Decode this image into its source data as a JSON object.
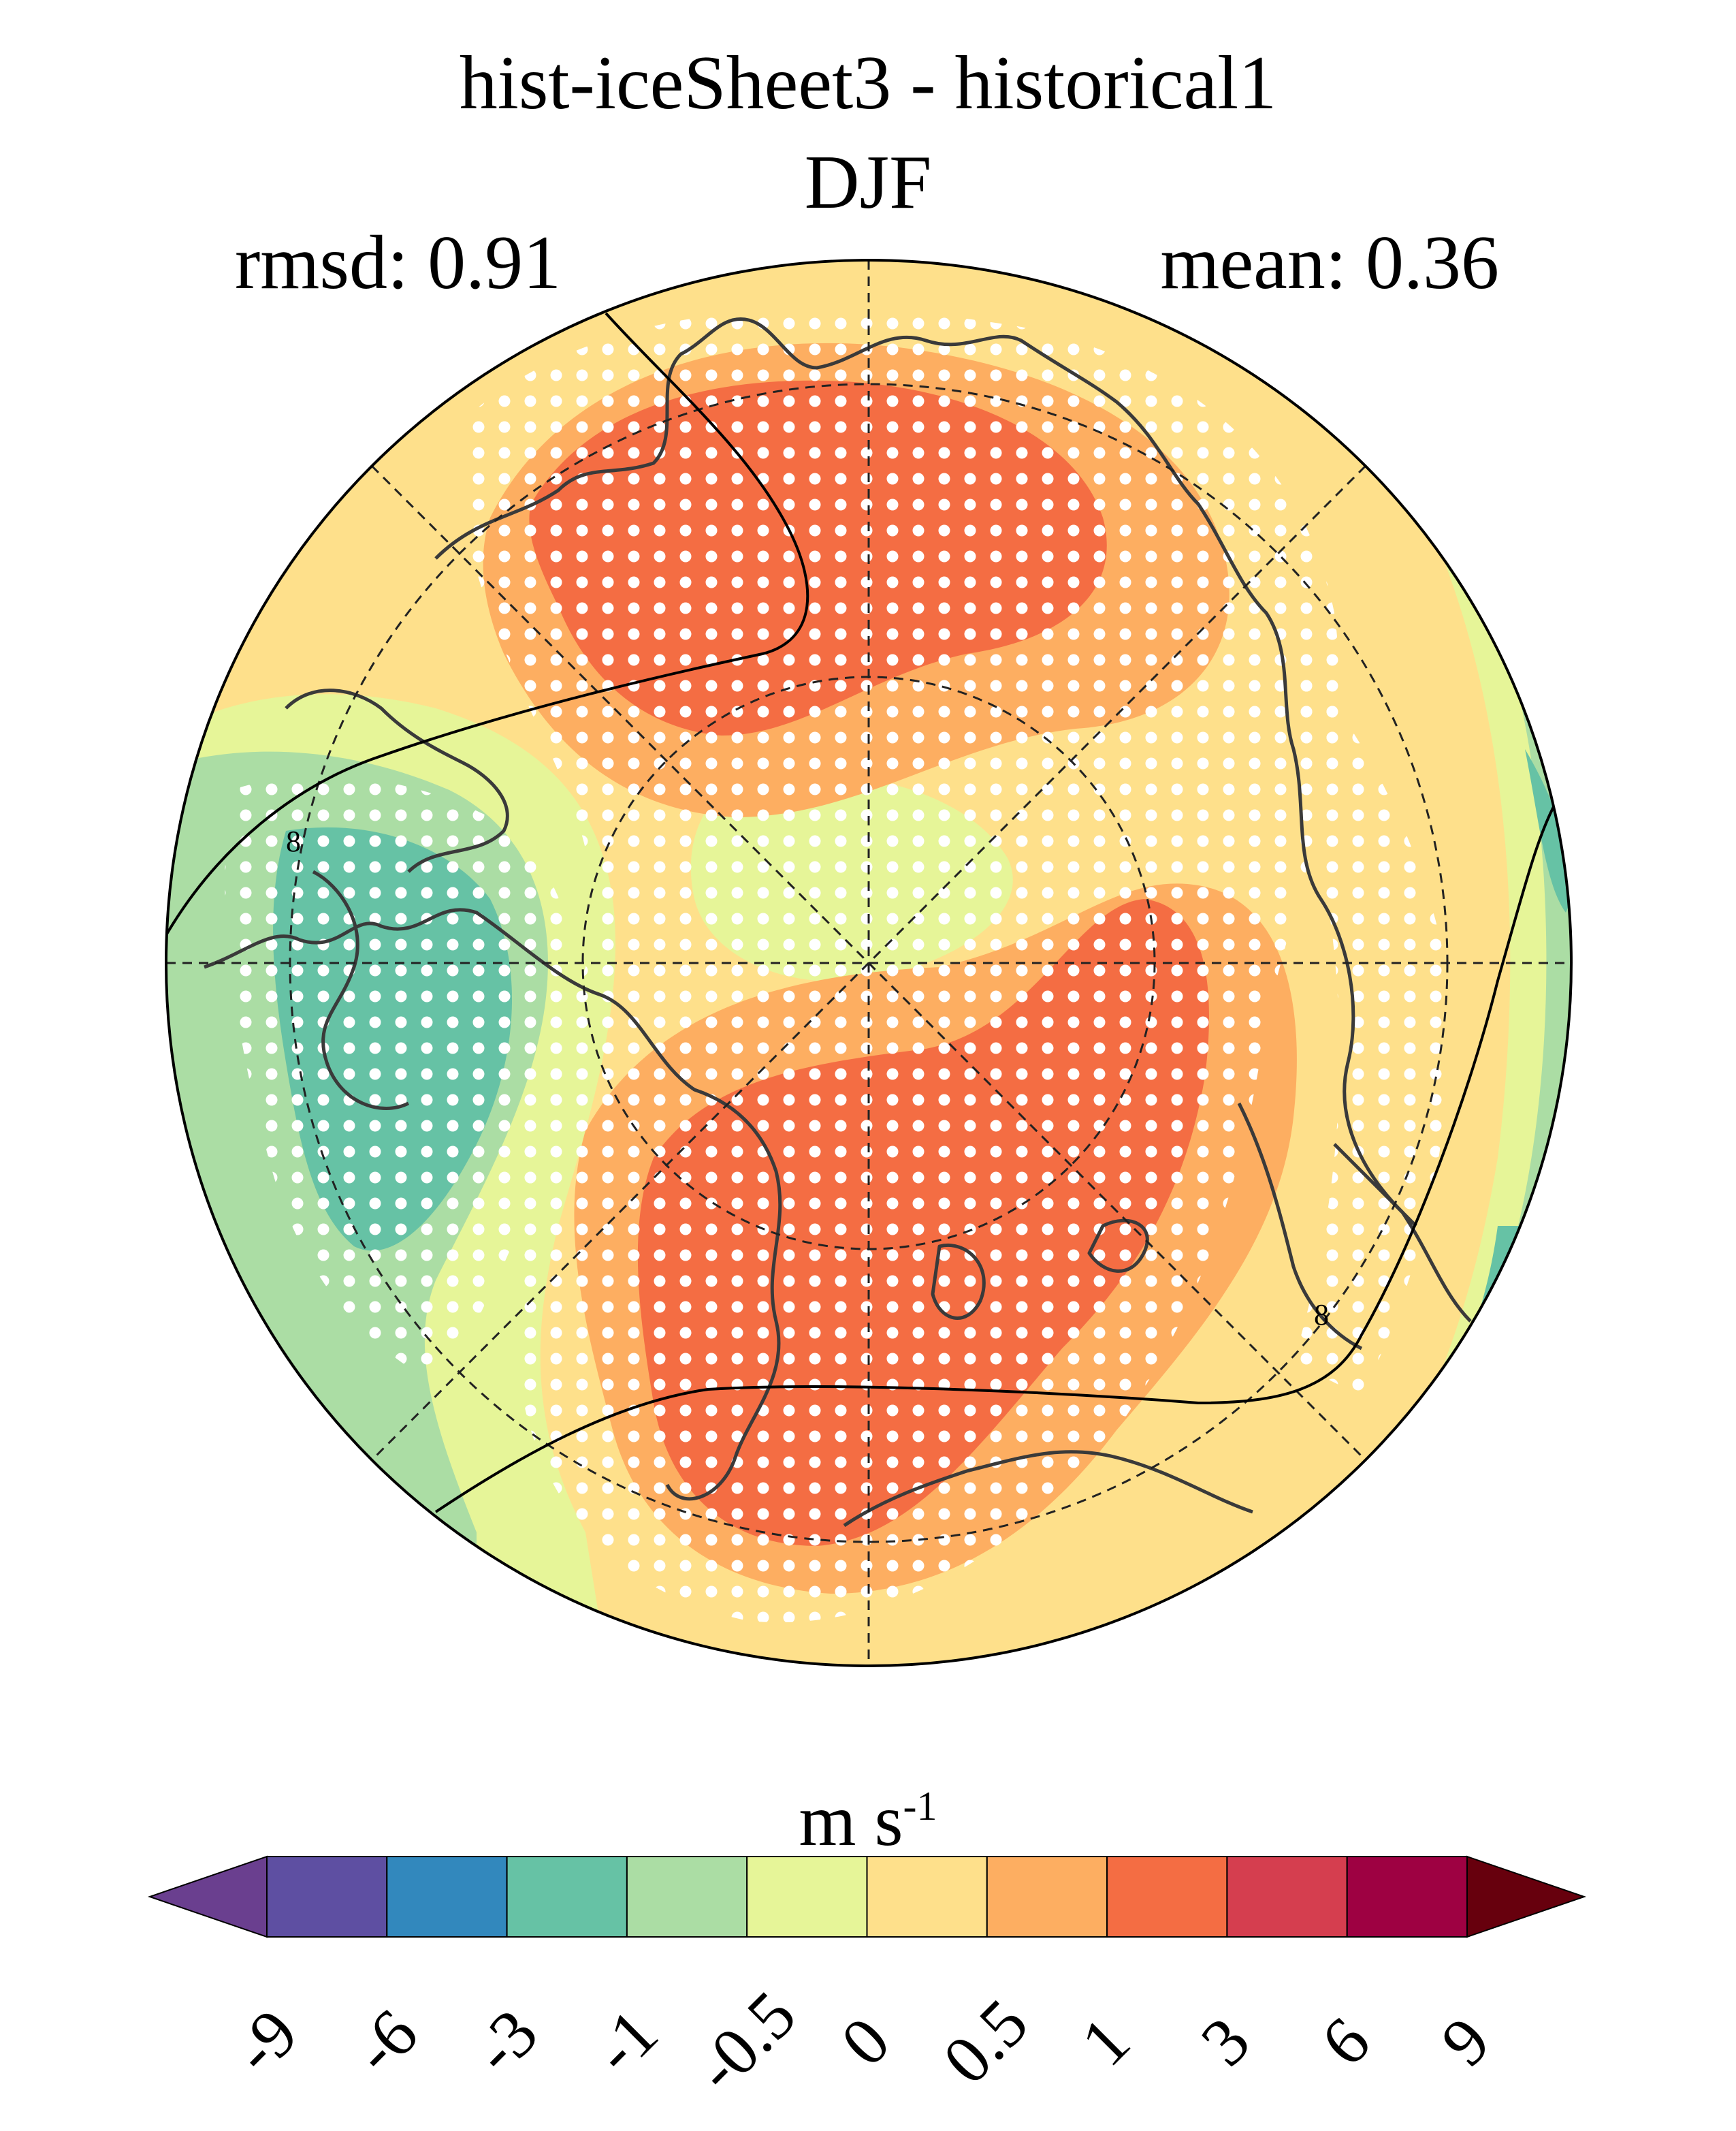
{
  "title": "hist-iceSheet3 - historical1",
  "season": "DJF",
  "stats": {
    "rmsd_label": "rmsd: 0.91",
    "mean_label": "mean: 0.36"
  },
  "map": {
    "projection": "north polar stereographic",
    "graticule": "dashed",
    "stippling": "white dots mark significant regions",
    "contour_label": "8"
  },
  "colorbar": {
    "units_base": "m s",
    "units_exp": "-1",
    "ticks": [
      "-9",
      "-6",
      "-3",
      "-1",
      "-0.5",
      "0",
      "0.5",
      "1",
      "3",
      "6",
      "9"
    ],
    "colors": [
      "#5e4fa2",
      "#3288bd",
      "#66c2a5",
      "#abdda4",
      "#e6f598",
      "#fee08b",
      "#fdae61",
      "#f46d43",
      "#d53e4f",
      "#9e0142"
    ],
    "under_color": "#6a3f8f",
    "over_color": "#67000d"
  }
}
